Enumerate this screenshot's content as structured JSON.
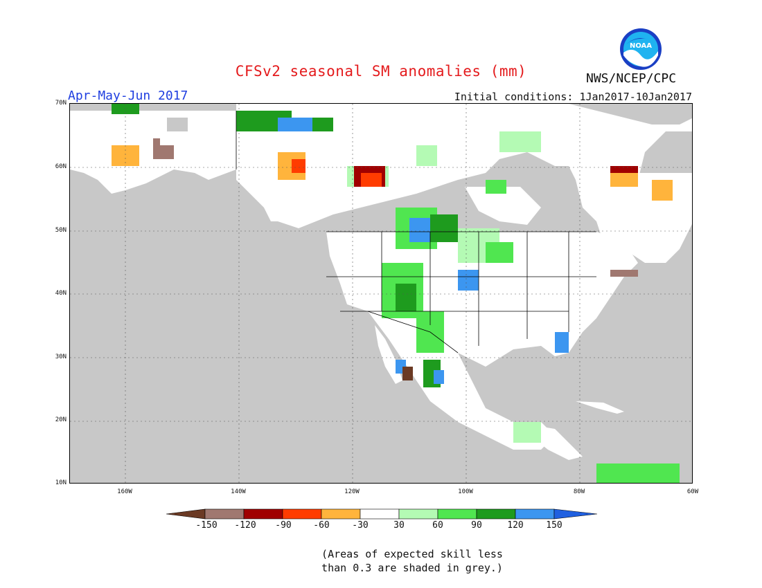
{
  "header": {
    "title": "CFSv2 seasonal SM anomalies (mm)",
    "period": "Apr-May-Jun 2017",
    "initial_conditions": "Initial conditions: 1Jan2017-10Jan2017",
    "agency": "NWS/NCEP/CPC",
    "logo_text": "NOAA"
  },
  "map": {
    "lat_labels": [
      "70N",
      "60N",
      "50N",
      "40N",
      "30N",
      "20N",
      "10N"
    ],
    "lon_labels": [
      "160W",
      "140W",
      "120W",
      "100W",
      "80W",
      "60W"
    ],
    "background_color": "#c8c8c8",
    "land_color": "#ffffff",
    "grid": true
  },
  "colorbar": {
    "labels": [
      "-150",
      "-120",
      "-90",
      "-60",
      "-30",
      "30",
      "60",
      "90",
      "120",
      "150"
    ],
    "colors": [
      "#6b3a24",
      "#a07870",
      "#a00000",
      "#ff3c00",
      "#ffb43c",
      "#ffffff",
      "#b4fab4",
      "#50e650",
      "#1e9b1e",
      "#3c96f0",
      "#2060e0"
    ]
  },
  "note": {
    "line1": "(Areas of expected skill less",
    "line2": "than 0.3 are shaded in grey.)"
  }
}
